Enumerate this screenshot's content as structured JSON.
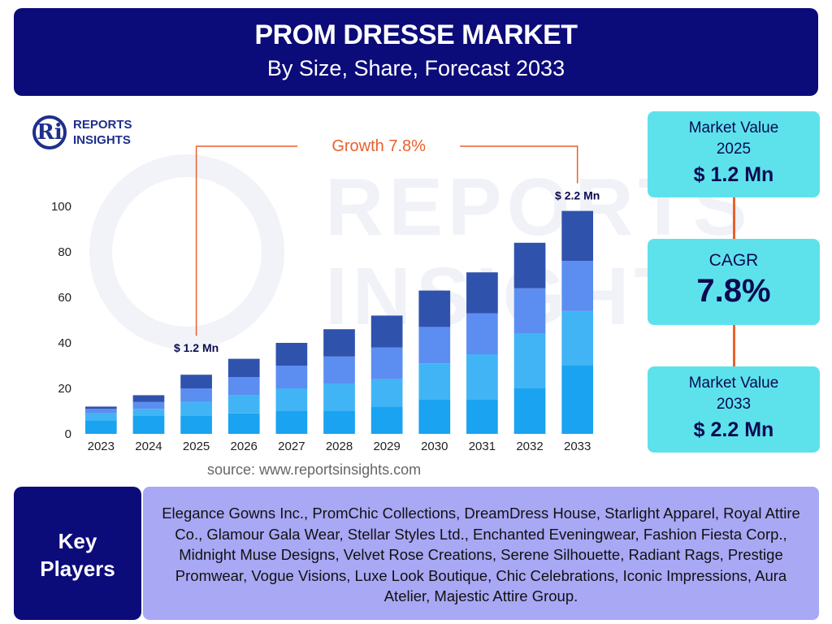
{
  "header": {
    "title": "PROM DRESSE MARKET",
    "subtitle": "By Size, Share, Forecast 2033"
  },
  "logo": {
    "mark": "Ri",
    "line1": "REPORTS",
    "line2": "INSIGHTS"
  },
  "watermark": {
    "line1": "REPORTS",
    "line2": "INSIGHTS"
  },
  "source": "source: www.reportsinsights.com",
  "stats": {
    "value_2025": {
      "label_line1": "Market Value",
      "label_line2": "2025",
      "value": "$ 1.2 Mn"
    },
    "cagr": {
      "label": "CAGR",
      "value": "7.8%"
    },
    "value_2033": {
      "label_line1": "Market Value",
      "label_line2": "2033",
      "value": "$ 2.2 Mn"
    }
  },
  "key_players": {
    "label_line1": "Key",
    "label_line2": "Players",
    "text": "Elegance Gowns Inc., PromChic Collections, DreamDress House, Starlight Apparel, Royal Attire Co., Glamour Gala Wear, Stellar Styles Ltd., Enchanted Eveningwear, Fashion Fiesta Corp., Midnight Muse Designs, Velvet Rose Creations, Serene Silhouette, Radiant Rags, Prestige Promwear, Vogue Visions, Luxe Look Boutique, Chic Celebrations, Iconic Impressions, Aura Atelier, Majestic Attire Group."
  },
  "colors": {
    "header_bg": "#0b0b7a",
    "stat_bg": "#5de2ec",
    "key_players_bg": "#a9a8f5",
    "growth_line": "#e8612c",
    "segments": [
      "#1aa3f0",
      "#41b4f5",
      "#5b8ef0",
      "#2f52ad"
    ]
  },
  "chart_data": {
    "type": "bar",
    "stacked": true,
    "categories": [
      "2023",
      "2024",
      "2025",
      "2026",
      "2027",
      "2028",
      "2029",
      "2030",
      "2031",
      "2032",
      "2033"
    ],
    "series": [
      {
        "values": [
          6,
          8,
          8,
          9,
          10,
          10,
          12,
          15,
          15,
          20,
          30
        ]
      },
      {
        "values": [
          3,
          3,
          6,
          8,
          10,
          12,
          12,
          16,
          20,
          24,
          24
        ]
      },
      {
        "values": [
          2,
          3,
          6,
          8,
          10,
          12,
          14,
          16,
          18,
          20,
          22
        ]
      },
      {
        "values": [
          1,
          3,
          6,
          8,
          10,
          12,
          14,
          16,
          18,
          20,
          22
        ]
      }
    ],
    "ylim": [
      0,
      100
    ],
    "yticks": [
      0,
      20,
      40,
      60,
      80,
      100
    ],
    "annotations": {
      "start_label": "$ 1.2 Mn",
      "start_category": "2025",
      "end_label": "$ 2.2 Mn",
      "end_category": "2033",
      "growth_text": "Growth",
      "growth_value": "7.8%"
    },
    "grid": false,
    "legend": "none"
  }
}
